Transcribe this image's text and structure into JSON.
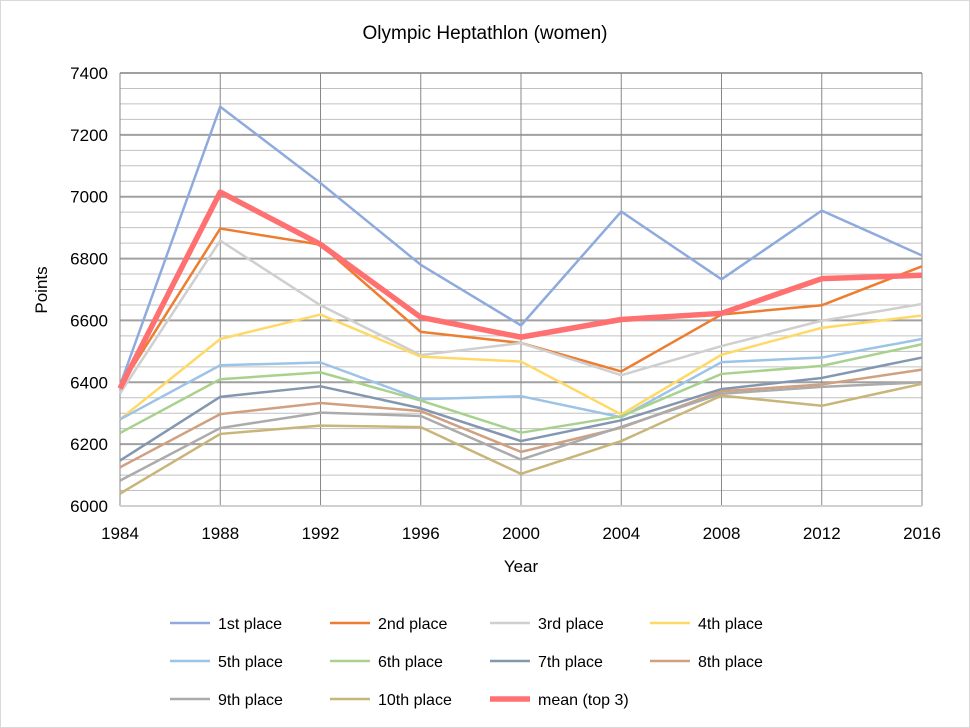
{
  "chart_data": {
    "type": "line",
    "title": "Olympic Heptathlon (women)",
    "xlabel": "Year",
    "ylabel": "Points",
    "x": [
      1984,
      1988,
      1992,
      1996,
      2000,
      2004,
      2008,
      2012,
      2016
    ],
    "x_tick_labels": [
      "1984",
      "1988",
      "1992",
      "1996",
      "2000",
      "2004",
      "2008",
      "2012",
      "2016"
    ],
    "ylim": [
      6000,
      7400
    ],
    "y_tick_labels": [
      "6000",
      "6200",
      "6400",
      "6600",
      "6800",
      "7000",
      "7200",
      "7400"
    ],
    "y_major_step": 200,
    "y_minor_step": 50,
    "grid": true,
    "legend_placement": "bottom",
    "series": [
      {
        "name": "1st place",
        "color": "#8FAADC",
        "width": 2.5,
        "values": [
          6390,
          7291,
          7044,
          6780,
          6584,
          6952,
          6733,
          6955,
          6810
        ]
      },
      {
        "name": "2nd place",
        "color": "#ED7D31",
        "width": 2.5,
        "values": [
          6385,
          6897,
          6845,
          6563,
          6527,
          6435,
          6619,
          6649,
          6775
        ]
      },
      {
        "name": "3rd place",
        "color": "#CFCFCF",
        "width": 2.5,
        "values": [
          6364,
          6858,
          6649,
          6488,
          6527,
          6423,
          6517,
          6599,
          6653
        ]
      },
      {
        "name": "4th place",
        "color": "#FFD966",
        "width": 2.5,
        "values": [
          6280,
          6540,
          6619,
          6483,
          6467,
          6296,
          6489,
          6576,
          6616
        ]
      },
      {
        "name": "5th place",
        "color": "#9DC3E6",
        "width": 2.5,
        "values": [
          6280,
          6455,
          6464,
          6345,
          6355,
          6287,
          6465,
          6480,
          6540
        ]
      },
      {
        "name": "6th place",
        "color": "#A9D18E",
        "width": 2.5,
        "values": [
          6236,
          6410,
          6432,
          6341,
          6237,
          6290,
          6427,
          6453,
          6523
        ]
      },
      {
        "name": "7th place",
        "color": "#8497B0",
        "width": 2.5,
        "values": [
          6147,
          6353,
          6387,
          6316,
          6210,
          6277,
          6378,
          6414,
          6480
        ]
      },
      {
        "name": "8th place",
        "color": "#D0A080",
        "width": 2.5,
        "values": [
          6125,
          6297,
          6333,
          6307,
          6175,
          6253,
          6371,
          6393,
          6441
        ]
      },
      {
        "name": "9th place",
        "color": "#ABABAB",
        "width": 2.5,
        "values": [
          6082,
          6252,
          6302,
          6291,
          6150,
          6256,
          6363,
          6385,
          6400
        ]
      },
      {
        "name": "10th place",
        "color": "#C9B47A",
        "width": 2.5,
        "values": [
          6040,
          6233,
          6260,
          6255,
          6104,
          6210,
          6357,
          6324,
          6395
        ]
      },
      {
        "name": "mean (top 3)",
        "color": "#FF7070",
        "width": 5.5,
        "values": [
          6380,
          7015,
          6846,
          6610,
          6546,
          6603,
          6623,
          6735,
          6746
        ]
      }
    ]
  }
}
